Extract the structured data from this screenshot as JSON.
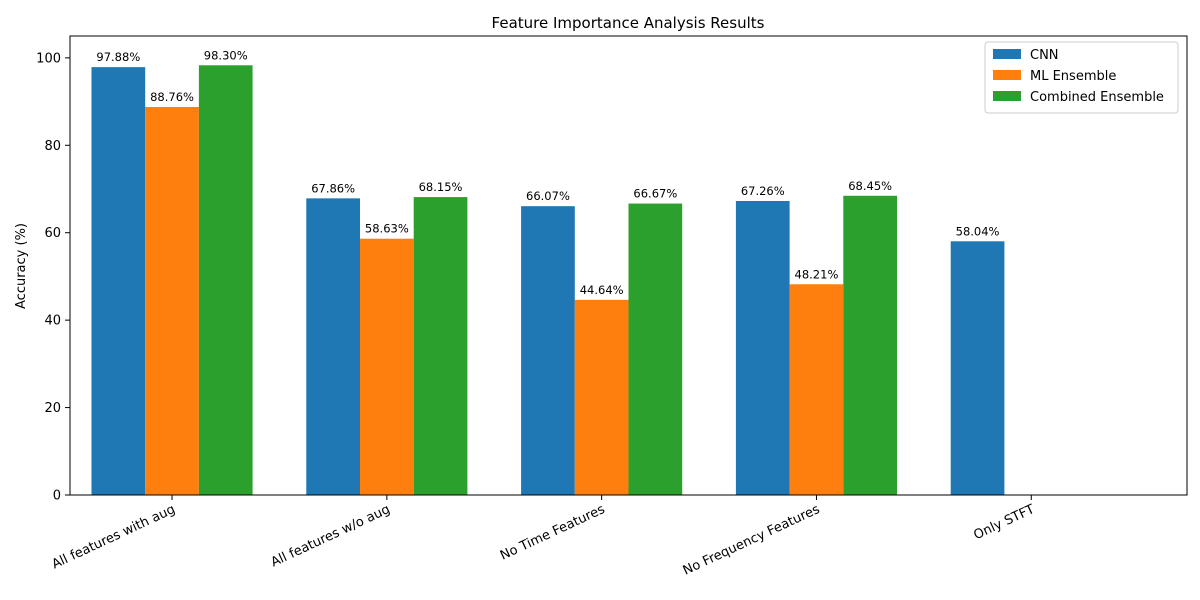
{
  "chart_data": {
    "type": "bar",
    "title": "Feature Importance Analysis Results",
    "xlabel": "",
    "ylabel": "Accuracy (%)",
    "ylim": [
      0,
      105
    ],
    "yticks": [
      0,
      20,
      40,
      60,
      80,
      100
    ],
    "grid": false,
    "legend_position": "top-right",
    "categories": [
      "All features with aug",
      "All features w/o aug",
      "No Time Features",
      "No Frequency Features",
      "Only STFT"
    ],
    "series": [
      {
        "name": "CNN",
        "color": "#1f77b4",
        "values": [
          97.88,
          67.86,
          66.07,
          67.26,
          58.04
        ],
        "labels": [
          "97.88%",
          "67.86%",
          "66.07%",
          "67.26%",
          "58.04%"
        ]
      },
      {
        "name": "ML Ensemble",
        "color": "#ff7f0e",
        "values": [
          88.76,
          58.63,
          44.64,
          48.21,
          null
        ],
        "labels": [
          "88.76%",
          "58.63%",
          "44.64%",
          "48.21%",
          null
        ]
      },
      {
        "name": "Combined Ensemble",
        "color": "#2ca02c",
        "values": [
          98.3,
          68.15,
          66.67,
          68.45,
          null
        ],
        "labels": [
          "98.30%",
          "68.15%",
          "66.67%",
          "68.45%",
          null
        ]
      }
    ]
  }
}
